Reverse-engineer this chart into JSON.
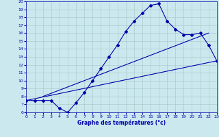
{
  "title": "Graphe des températures (°c)",
  "bg_color": "#cce8ef",
  "line_color": "#0000aa",
  "grid_color": "#aacccc",
  "xmin": 0,
  "xmax": 23,
  "ymin": 6,
  "ymax": 20,
  "curve_x": [
    0,
    1,
    2,
    3,
    4,
    5,
    6,
    7,
    8,
    9,
    10,
    11,
    12,
    13,
    14,
    15,
    16,
    17,
    18,
    19,
    20,
    21,
    22,
    23
  ],
  "curve_y": [
    7.5,
    7.5,
    7.5,
    7.5,
    6.5,
    6.0,
    7.2,
    8.5,
    10.0,
    11.5,
    13.0,
    14.5,
    16.2,
    17.5,
    18.5,
    19.5,
    19.7,
    17.5,
    16.5,
    15.8,
    15.8,
    16.0,
    14.5,
    12.5
  ],
  "line2_x": [
    0,
    23
  ],
  "line2_y": [
    7.5,
    12.5
  ],
  "line3_x": [
    2,
    22
  ],
  "line3_y": [
    8.0,
    16.0
  ]
}
